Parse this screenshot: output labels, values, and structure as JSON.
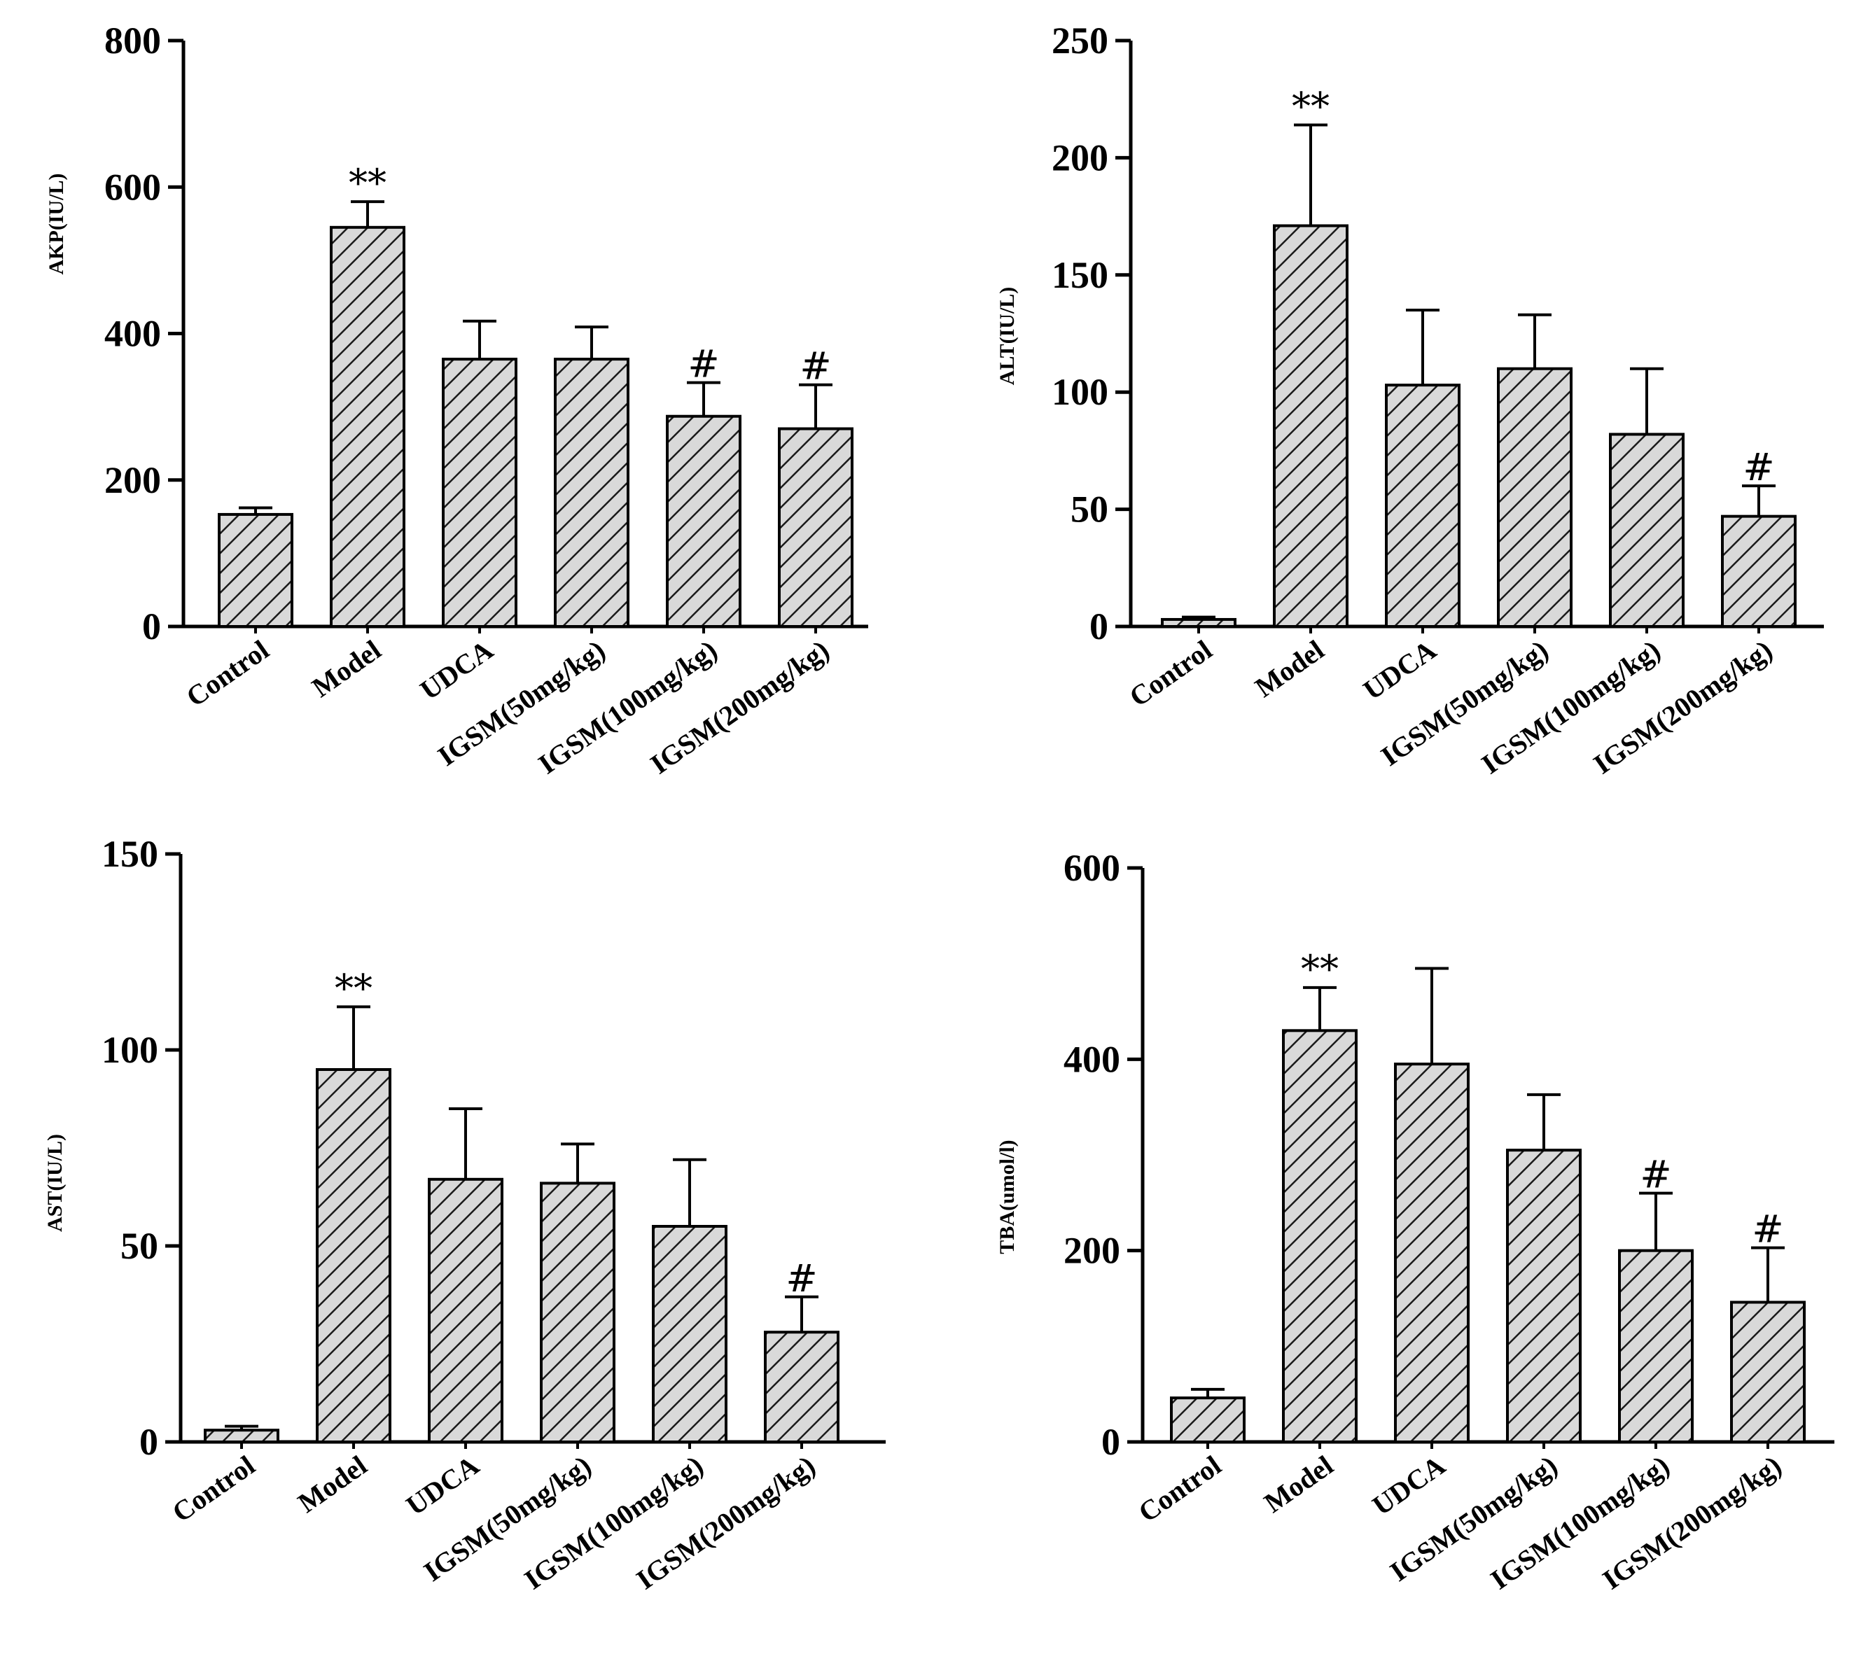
{
  "chart_data": [
    {
      "type": "bar",
      "panel": "top-left",
      "title": "",
      "xlabel": "",
      "ylabel": "AKP(IU/L)",
      "ylim": [
        0,
        800
      ],
      "yticks": [
        0,
        200,
        400,
        600,
        800
      ],
      "categories": [
        "Control",
        "Model",
        "UDCA",
        "IGSM(50mg/kg)",
        "IGSM(100mg/kg)",
        "IGSM(200mg/kg)"
      ],
      "values": [
        153,
        545,
        365,
        365,
        287,
        270
      ],
      "errors": [
        9,
        35,
        52,
        44,
        46,
        60
      ],
      "annotations": [
        "",
        "**",
        "",
        "",
        "#",
        "#"
      ]
    },
    {
      "type": "bar",
      "panel": "top-right",
      "title": "",
      "xlabel": "",
      "ylabel": "ALT(IU/L)",
      "ylim": [
        0,
        250
      ],
      "yticks": [
        0,
        50,
        100,
        150,
        200,
        250
      ],
      "categories": [
        "Control",
        "Model",
        "UDCA",
        "IGSM(50mg/kg)",
        "IGSM(100mg/kg)",
        "IGSM(200mg/kg)"
      ],
      "values": [
        3,
        171,
        103,
        110,
        82,
        47
      ],
      "errors": [
        1,
        43,
        32,
        23,
        28,
        13
      ],
      "annotations": [
        "",
        "**",
        "",
        "",
        "",
        "#"
      ]
    },
    {
      "type": "bar",
      "panel": "bottom-left",
      "title": "",
      "xlabel": "",
      "ylabel": "AST(IU/L)",
      "ylim": [
        0,
        150
      ],
      "yticks": [
        0,
        50,
        100,
        150
      ],
      "categories": [
        "Control",
        "Model",
        "UDCA",
        "IGSM(50mg/kg)",
        "IGSM(100mg/kg)",
        "IGSM(200mg/kg)"
      ],
      "values": [
        3,
        95,
        67,
        66,
        55,
        28
      ],
      "errors": [
        1,
        16,
        18,
        10,
        17,
        9
      ],
      "annotations": [
        "",
        "**",
        "",
        "",
        "",
        "#"
      ]
    },
    {
      "type": "bar",
      "panel": "bottom-right",
      "title": "",
      "xlabel": "",
      "ylabel": "TBA(umol/l)",
      "ylim": [
        0,
        600
      ],
      "yticks": [
        0,
        200,
        400,
        600
      ],
      "categories": [
        "Control",
        "Model",
        "UDCA",
        "IGSM(50mg/kg)",
        "IGSM(100mg/kg)",
        "IGSM(200mg/kg)"
      ],
      "values": [
        46,
        430,
        395,
        305,
        200,
        146
      ],
      "errors": [
        9,
        45,
        100,
        58,
        60,
        57
      ],
      "annotations": [
        "",
        "**",
        "",
        "",
        "#",
        "#"
      ]
    }
  ],
  "style": {
    "bar_fill": "#d9d9d9",
    "hatch_color": "#1a1a1a",
    "axis_color": "#000000"
  }
}
